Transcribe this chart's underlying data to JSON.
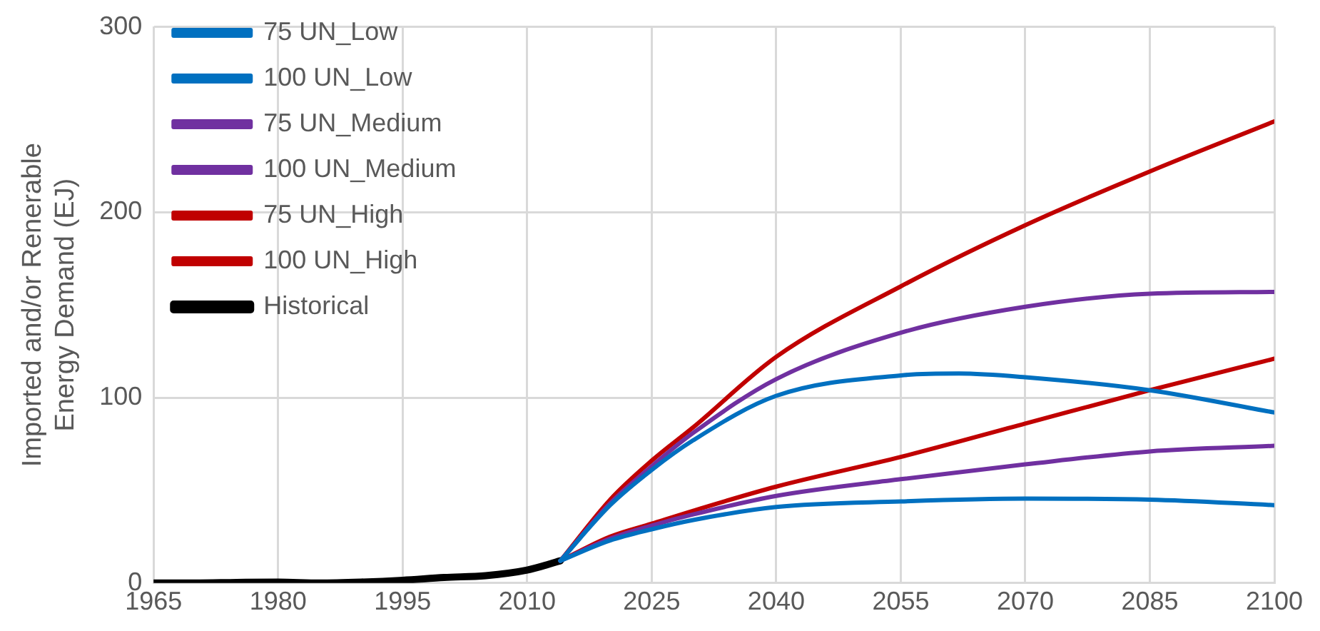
{
  "chart_data": {
    "type": "line",
    "ylabel": "Imported and/or Renerable\nEnergy Demand (EJ)",
    "xlim": [
      1965,
      2100
    ],
    "xticks": [
      1965,
      1980,
      1995,
      2010,
      2025,
      2040,
      2055,
      2070,
      2085,
      2100
    ],
    "ylim": [
      0,
      300
    ],
    "yticks": [
      0,
      100,
      200,
      300
    ],
    "grid": true,
    "legend": "top left",
    "marker": "none",
    "line_style": "solid",
    "series": [
      {
        "name": "75 UN_Low",
        "color": "#0070c0",
        "x": [
          2014,
          2020,
          2025,
          2030,
          2040,
          2055,
          2070,
          2085,
          2100
        ],
        "values": [
          12,
          23,
          29,
          34,
          41,
          44,
          45.5,
          45,
          42
        ]
      },
      {
        "name": "100 UN_Low",
        "color": "#0070c0",
        "x": [
          2014,
          2020,
          2025,
          2030,
          2040,
          2055,
          2062,
          2070,
          2085,
          2100
        ],
        "values": [
          12,
          42,
          61,
          77,
          101,
          112,
          113,
          111,
          104,
          92
        ]
      },
      {
        "name": "75 UN_Medium",
        "color": "#7030a0",
        "x": [
          2014,
          2020,
          2025,
          2030,
          2040,
          2055,
          2070,
          2085,
          2100
        ],
        "values": [
          12,
          24,
          31,
          37,
          47,
          56,
          64,
          71,
          74
        ]
      },
      {
        "name": "100 UN_Medium",
        "color": "#7030a0",
        "x": [
          2014,
          2020,
          2025,
          2030,
          2040,
          2055,
          2070,
          2085,
          2100
        ],
        "values": [
          12,
          43,
          63,
          81,
          110,
          135,
          149,
          156,
          157
        ]
      },
      {
        "name": "75 UN_High",
        "color": "#c00000",
        "x": [
          2014,
          2020,
          2025,
          2030,
          2040,
          2055,
          2070,
          2085,
          2100
        ],
        "values": [
          12,
          25,
          32,
          39,
          52,
          68,
          86,
          104,
          121
        ]
      },
      {
        "name": "100 UN_High",
        "color": "#c00000",
        "x": [
          2014,
          2020,
          2025,
          2030,
          2040,
          2055,
          2070,
          2085,
          2100
        ],
        "values": [
          12,
          45,
          66,
          84,
          122,
          160,
          193,
          222,
          249
        ]
      },
      {
        "name": "Historical",
        "color": "#000000",
        "x": [
          1965,
          1970,
          1975,
          1980,
          1985,
          1990,
          1995,
          2000,
          2005,
          2010,
          2014
        ],
        "values": [
          0,
          0,
          0.3,
          0.5,
          0,
          0.5,
          1.5,
          3,
          4,
          7,
          12
        ]
      }
    ]
  }
}
